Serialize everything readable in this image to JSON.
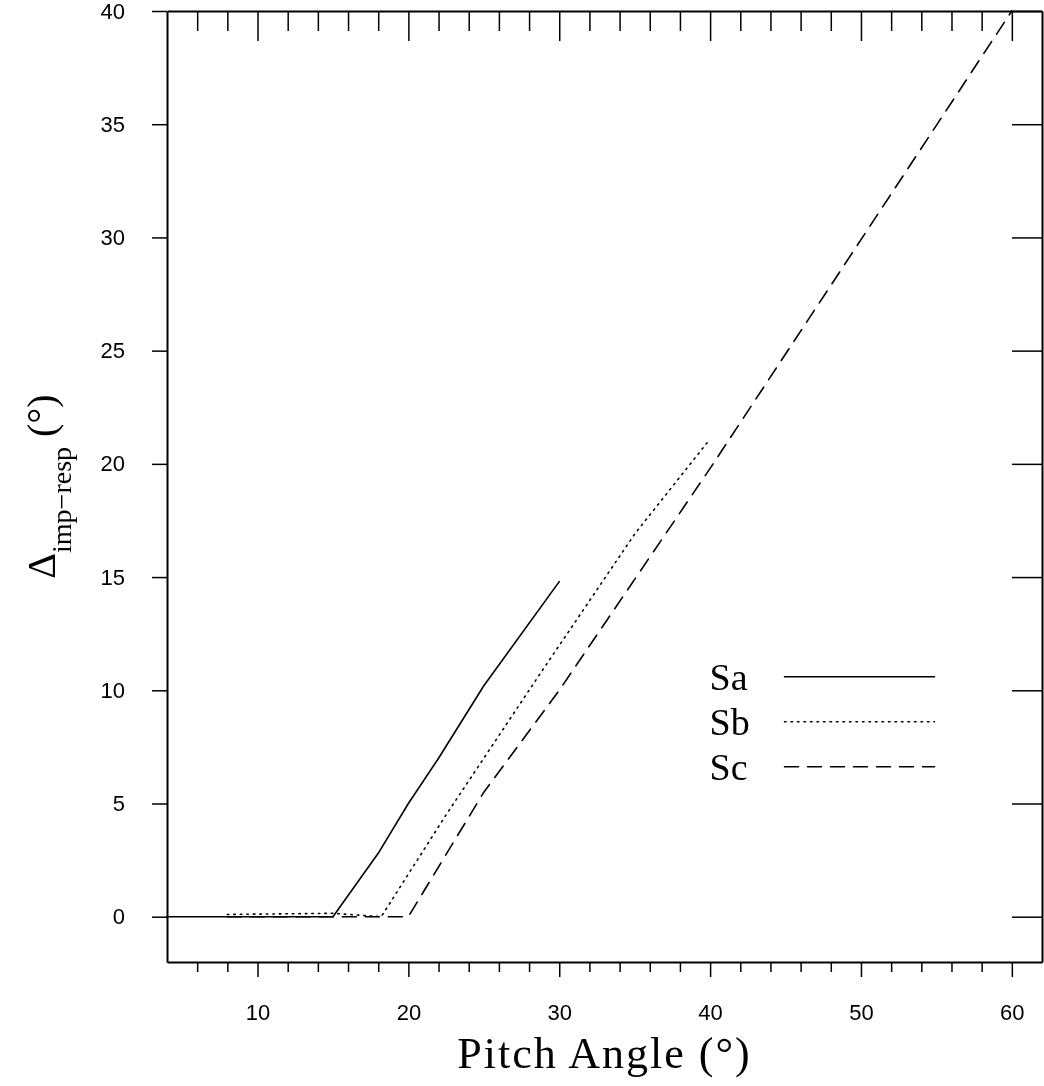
{
  "chart_data": {
    "type": "line",
    "xlabel": "Pitch Angle (°)",
    "ylabel": "Δ$_{imp−resp}$  (°)",
    "xlim": [
      4,
      62
    ],
    "ylim": [
      -2,
      40
    ],
    "xticks": [
      {
        "value": 6,
        "label": null
      },
      {
        "value": 8,
        "label": null
      },
      10,
      {
        "value": 12,
        "label": null
      },
      {
        "value": 14,
        "label": null
      },
      {
        "value": 16,
        "label": null
      },
      {
        "value": 18,
        "label": null
      },
      20,
      {
        "value": 22,
        "label": null
      },
      {
        "value": 24,
        "label": null
      },
      {
        "value": 26,
        "label": null
      },
      {
        "value": 28,
        "label": null
      },
      30,
      {
        "value": 32,
        "label": null
      },
      {
        "value": 34,
        "label": null
      },
      {
        "value": 36,
        "label": null
      },
      {
        "value": 38,
        "label": null
      },
      40,
      {
        "value": 42,
        "label": null
      },
      {
        "value": 44,
        "label": null
      },
      {
        "value": 46,
        "label": null
      },
      {
        "value": 48,
        "label": null
      },
      50,
      {
        "value": 52,
        "label": null
      },
      {
        "value": 54,
        "label": null
      },
      {
        "value": 56,
        "label": null
      },
      {
        "value": 58,
        "label": null
      },
      60
    ],
    "yticks": [
      0,
      5,
      10,
      15,
      20,
      25,
      30,
      35,
      40
    ],
    "grid": false,
    "legend": "right",
    "marker": "none",
    "series": [
      {
        "name": "Sa",
        "color": "#000000",
        "line_style": "solid",
        "x": [
          4,
          15,
          18,
          20,
          22,
          25,
          30
        ],
        "values": [
          0,
          0,
          2.8,
          5,
          7,
          10.2,
          14.8
        ]
      },
      {
        "name": "Sb",
        "color": "#000000",
        "line_style": "dotted",
        "x": [
          8,
          15,
          18.2,
          22.5,
          28.7,
          35,
          40
        ],
        "values": [
          0.1,
          0.15,
          0,
          4.5,
          10.7,
          16.9,
          21.1
        ]
      },
      {
        "name": "Sc",
        "color": "#000000",
        "line_style": "dashed",
        "x": [
          8,
          20,
          25,
          30,
          40,
          60
        ],
        "values": [
          0,
          0,
          5.5,
          10,
          19.8,
          40
        ]
      }
    ]
  }
}
